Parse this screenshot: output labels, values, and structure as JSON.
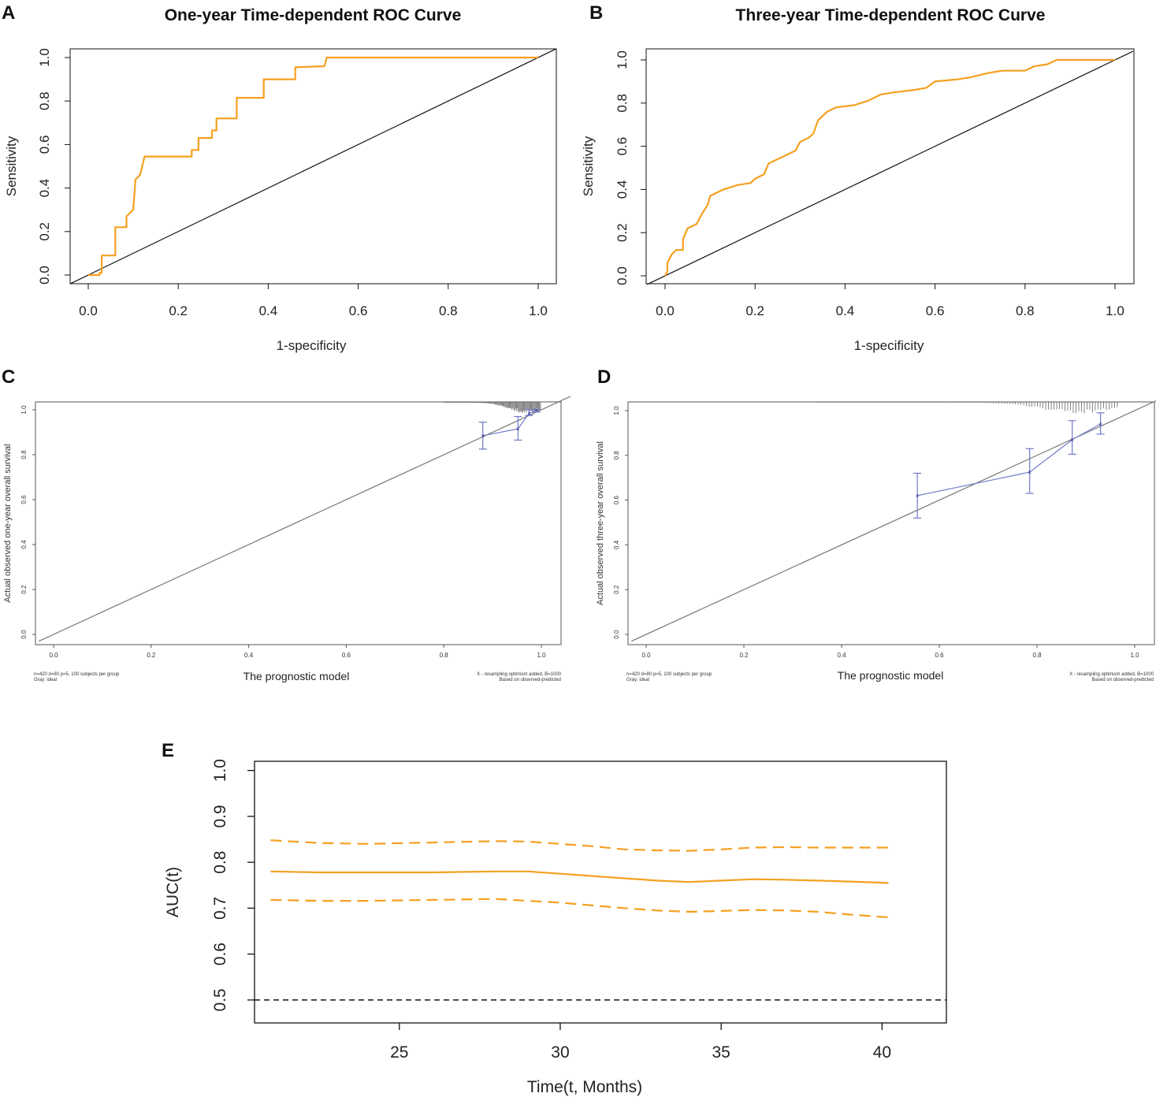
{
  "colors": {
    "roc": "#f5a020",
    "diag": "#111111",
    "calib": "#6f78c8",
    "ideal": "#777777",
    "auc": "#f5a020",
    "ref": "#111111"
  },
  "chart_data": [
    {
      "id": "A",
      "type": "line",
      "title": "One-year Time-dependent ROC Curve",
      "xlabel": "1-specificity",
      "ylabel": "Sensitivity",
      "xlim": [
        0,
        1
      ],
      "ylim": [
        0,
        1
      ],
      "xticks": [
        "0.0",
        "0.2",
        "0.4",
        "0.6",
        "0.8",
        "1.0"
      ],
      "yticks": [
        "0.0",
        "0.2",
        "0.4",
        "0.6",
        "0.8",
        "1.0"
      ],
      "series": [
        {
          "name": "ROC",
          "points": [
            [
              0,
              0
            ],
            [
              0.025,
              0
            ],
            [
              0.025,
              0.01
            ],
            [
              0.03,
              0.01
            ],
            [
              0.03,
              0.09
            ],
            [
              0.06,
              0.09
            ],
            [
              0.06,
              0.22
            ],
            [
              0.085,
              0.22
            ],
            [
              0.085,
              0.27
            ],
            [
              0.1,
              0.3
            ],
            [
              0.105,
              0.44
            ],
            [
              0.115,
              0.46
            ],
            [
              0.12,
              0.5
            ],
            [
              0.125,
              0.545
            ],
            [
              0.23,
              0.545
            ],
            [
              0.23,
              0.575
            ],
            [
              0.245,
              0.575
            ],
            [
              0.245,
              0.63
            ],
            [
              0.275,
              0.63
            ],
            [
              0.275,
              0.665
            ],
            [
              0.285,
              0.665
            ],
            [
              0.285,
              0.72
            ],
            [
              0.33,
              0.72
            ],
            [
              0.33,
              0.815
            ],
            [
              0.39,
              0.815
            ],
            [
              0.39,
              0.9
            ],
            [
              0.46,
              0.9
            ],
            [
              0.46,
              0.955
            ],
            [
              0.525,
              0.96
            ],
            [
              0.53,
              1.0
            ],
            [
              0.8,
              1.0
            ],
            [
              1.0,
              1.0
            ]
          ]
        },
        {
          "name": "Reference",
          "points": [
            [
              0,
              0
            ],
            [
              1,
              1
            ]
          ]
        }
      ]
    },
    {
      "id": "B",
      "type": "line",
      "title": "Three-year Time-dependent ROC Curve",
      "xlabel": "1-specificity",
      "ylabel": "Sensitivity",
      "xlim": [
        0,
        1
      ],
      "ylim": [
        0,
        1
      ],
      "xticks": [
        "0.0",
        "0.2",
        "0.4",
        "0.6",
        "0.8",
        "1.0"
      ],
      "yticks": [
        "0.0",
        "0.2",
        "0.4",
        "0.6",
        "0.8",
        "1.0"
      ],
      "series": [
        {
          "name": "ROC",
          "points": [
            [
              0,
              0
            ],
            [
              0.005,
              0.02
            ],
            [
              0.005,
              0.06
            ],
            [
              0.015,
              0.1
            ],
            [
              0.025,
              0.12
            ],
            [
              0.04,
              0.12
            ],
            [
              0.04,
              0.17
            ],
            [
              0.05,
              0.22
            ],
            [
              0.07,
              0.24
            ],
            [
              0.08,
              0.28
            ],
            [
              0.095,
              0.33
            ],
            [
              0.1,
              0.37
            ],
            [
              0.13,
              0.4
            ],
            [
              0.16,
              0.42
            ],
            [
              0.19,
              0.43
            ],
            [
              0.2,
              0.45
            ],
            [
              0.22,
              0.47
            ],
            [
              0.23,
              0.52
            ],
            [
              0.26,
              0.55
            ],
            [
              0.29,
              0.58
            ],
            [
              0.3,
              0.62
            ],
            [
              0.32,
              0.64
            ],
            [
              0.33,
              0.66
            ],
            [
              0.34,
              0.72
            ],
            [
              0.36,
              0.76
            ],
            [
              0.38,
              0.78
            ],
            [
              0.42,
              0.79
            ],
            [
              0.45,
              0.81
            ],
            [
              0.48,
              0.84
            ],
            [
              0.51,
              0.85
            ],
            [
              0.55,
              0.86
            ],
            [
              0.58,
              0.87
            ],
            [
              0.6,
              0.9
            ],
            [
              0.65,
              0.91
            ],
            [
              0.68,
              0.92
            ],
            [
              0.72,
              0.94
            ],
            [
              0.75,
              0.95
            ],
            [
              0.8,
              0.95
            ],
            [
              0.82,
              0.97
            ],
            [
              0.85,
              0.98
            ],
            [
              0.87,
              1.0
            ],
            [
              1.0,
              1.0
            ]
          ]
        },
        {
          "name": "Reference",
          "points": [
            [
              0,
              0
            ],
            [
              1,
              1
            ]
          ]
        }
      ]
    },
    {
      "id": "C",
      "type": "line",
      "xlabel": "The prognostic model",
      "ylabel": "Actual observed one-year overall survival",
      "xlim": [
        0,
        1
      ],
      "ylim": [
        0,
        1
      ],
      "xticks": [
        "0.0",
        "0.2",
        "0.4",
        "0.6",
        "0.8",
        "1.0"
      ],
      "yticks": [
        "0.0",
        "0.2",
        "0.4",
        "0.6",
        "0.8",
        "1.0"
      ],
      "series": [
        {
          "name": "Calibration",
          "x": [
            0.88,
            0.952,
            0.975,
            0.99
          ],
          "y": [
            0.885,
            0.915,
            0.985,
            1.0
          ],
          "err_low": [
            0.825,
            0.865,
            0.975,
            0.99
          ],
          "err_high": [
            0.945,
            0.97,
            1.0,
            1.0
          ]
        },
        {
          "name": "Gray: ideal",
          "points": [
            [
              0,
              0
            ],
            [
              1,
              1
            ]
          ]
        }
      ],
      "notes_left": [
        "n=420 d=80 p=5, 100 subjects per group",
        "Gray: ideal"
      ],
      "notes_right": [
        "X - resampling optimism added, B=1000",
        "Based on observed-predicted"
      ]
    },
    {
      "id": "D",
      "type": "line",
      "xlabel": "The prognostic model",
      "ylabel": "Actual observed three-year overall survival",
      "xlim": [
        0,
        1
      ],
      "ylim": [
        0,
        1
      ],
      "xticks": [
        "0.0",
        "0.2",
        "0.4",
        "0.6",
        "0.8",
        "1.0"
      ],
      "yticks": [
        "0.0",
        "0.2",
        "0.4",
        "0.6",
        "0.8",
        "1.0"
      ],
      "series": [
        {
          "name": "Calibration",
          "x": [
            0.555,
            0.785,
            0.872,
            0.93
          ],
          "y": [
            0.62,
            0.725,
            0.87,
            0.94
          ],
          "err_low": [
            0.52,
            0.63,
            0.805,
            0.895
          ],
          "err_high": [
            0.72,
            0.83,
            0.955,
            0.99
          ]
        },
        {
          "name": "Gray: ideal",
          "points": [
            [
              0,
              0
            ],
            [
              1,
              1
            ]
          ]
        }
      ],
      "notes_left": [
        "n=420 d=80 p=5, 100 subjects per group",
        "Gray: ideal"
      ],
      "notes_right": [
        "X - resampling optimism added, B=1000",
        "Based on observed-predicted"
      ]
    },
    {
      "id": "E",
      "type": "line",
      "xlabel": "Time(t, Months)",
      "ylabel": "AUC(t)",
      "xlim": [
        20.5,
        42
      ],
      "ylim": [
        0.45,
        1.02
      ],
      "xticks": [
        25,
        30,
        35,
        40
      ],
      "yticks": [
        "0.5",
        "0.6",
        "0.7",
        "0.8",
        "0.9",
        "1.0"
      ],
      "series": [
        {
          "name": "AUC",
          "x": [
            21,
            22.5,
            24,
            26,
            28,
            29,
            30,
            31,
            32,
            33,
            34,
            35,
            36,
            37,
            38,
            39,
            40.2
          ],
          "y": [
            0.78,
            0.778,
            0.778,
            0.778,
            0.78,
            0.78,
            0.775,
            0.77,
            0.765,
            0.76,
            0.757,
            0.76,
            0.763,
            0.762,
            0.76,
            0.758,
            0.755
          ]
        },
        {
          "name": "Upper CI",
          "x": [
            21,
            22.5,
            24,
            26,
            28,
            29,
            30,
            31,
            32,
            33,
            34,
            35,
            36,
            37,
            38,
            39,
            40.2
          ],
          "y": [
            0.848,
            0.842,
            0.84,
            0.843,
            0.846,
            0.845,
            0.84,
            0.835,
            0.828,
            0.826,
            0.825,
            0.828,
            0.832,
            0.833,
            0.832,
            0.832,
            0.832
          ]
        },
        {
          "name": "Lower CI",
          "x": [
            21,
            22.5,
            24,
            26,
            28,
            29,
            30,
            31,
            32,
            33,
            34,
            35,
            36,
            37,
            38,
            39,
            40.2
          ],
          "y": [
            0.718,
            0.716,
            0.716,
            0.718,
            0.72,
            0.716,
            0.712,
            0.706,
            0.7,
            0.695,
            0.692,
            0.694,
            0.696,
            0.695,
            0.692,
            0.686,
            0.68
          ]
        },
        {
          "name": "Reference",
          "x": [
            20.5,
            42
          ],
          "y": [
            0.5,
            0.5
          ]
        }
      ]
    }
  ],
  "panels": {
    "A": {
      "letter": "A",
      "title": "One-year Time-dependent ROC Curve",
      "xlabel": "1-specificity",
      "ylabel": "Sensitivity"
    },
    "B": {
      "letter": "B",
      "title": "Three-year Time-dependent ROC Curve",
      "xlabel": "1-specificity",
      "ylabel": "Sensitivity"
    },
    "C": {
      "letter": "C",
      "xlabel": "The prognostic model",
      "ylabel": "Actual observed one-year overall survival",
      "note_l1": "n=420 d=80 p=5, 100 subjects per group",
      "note_l2": "Gray: ideal",
      "note_r1": "X - resampling optimism added, B=1000",
      "note_r2": "Based on observed-predicted"
    },
    "D": {
      "letter": "D",
      "xlabel": "The prognostic model",
      "ylabel": "Actual observed three-year overall survival",
      "note_l1": "n=420 d=80 p=5, 100 subjects per group",
      "note_l2": "Gray: ideal",
      "note_r1": "X - resampling optimism added, B=1000",
      "note_r2": "Based on observed-predicted"
    },
    "E": {
      "letter": "E",
      "xlabel": "Time(t, Months)",
      "ylabel": "AUC(t)"
    }
  }
}
